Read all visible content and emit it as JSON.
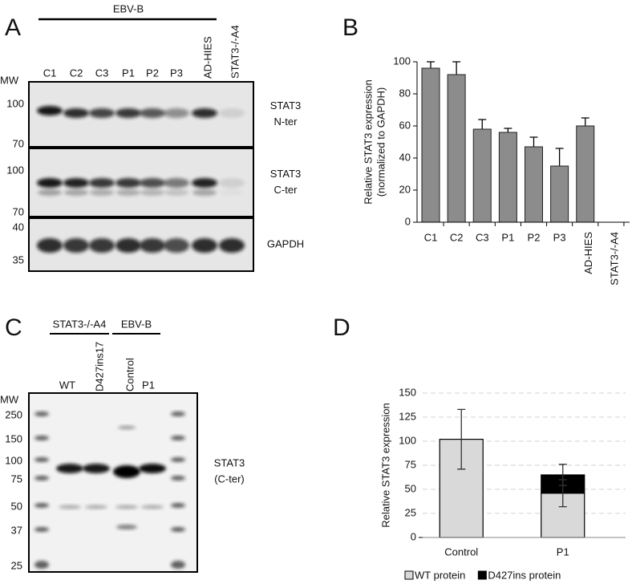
{
  "panel_a": {
    "letter": "A",
    "group": "EBV-B",
    "mw_label": "MW",
    "lanes": [
      "C1",
      "C2",
      "C3",
      "P1",
      "P2",
      "P3",
      "AD-HIES",
      "STAT3-/-A4"
    ],
    "blots": [
      {
        "label": [
          "STAT3",
          "N-ter"
        ],
        "markers": [
          100,
          70
        ]
      },
      {
        "label": [
          "STAT3",
          "C-ter"
        ],
        "markers": [
          100,
          70
        ]
      },
      {
        "label": [
          "GAPDH"
        ],
        "markers": [
          40,
          35
        ]
      }
    ]
  },
  "panel_c": {
    "letter": "C",
    "mw_label": "MW",
    "groups": [
      "STAT3-/-A4",
      "EBV-B"
    ],
    "lanes": [
      "WT",
      "D427ins17",
      "Control",
      "P1"
    ],
    "markers": [
      250,
      150,
      100,
      75,
      50,
      37,
      25
    ],
    "label": [
      "STAT3",
      "(C-ter)"
    ]
  },
  "chart_data": [
    {
      "type": "bar",
      "panel_letter": "B",
      "y_label": [
        "Relative STAT3 expression",
        "(normalized to GAPDH)"
      ],
      "categories": [
        "C1",
        "C2",
        "C3",
        "P1",
        "P2",
        "P3",
        "AD-HIES",
        "STAT3-/-A4"
      ],
      "values": [
        96,
        92,
        58,
        56,
        47,
        35,
        60,
        null
      ],
      "errors": [
        4,
        8,
        6,
        2.5,
        6,
        11,
        5,
        null
      ],
      "color": "#8c8c8c",
      "ylim": [
        0,
        100
      ],
      "yticks": [
        0,
        20,
        40,
        60,
        80,
        100
      ],
      "grid": false
    },
    {
      "type": "stacked_bar",
      "panel_letter": "D",
      "y_label": [
        "Relative STAT3 expression"
      ],
      "categories": [
        "Control",
        "P1"
      ],
      "series": [
        {
          "name": "WT protein",
          "color": "#d9d9d9",
          "values": [
            102,
            46
          ],
          "errors": [
            31,
            14
          ]
        },
        {
          "name": "D427ins protein",
          "color": "#000000",
          "values": [
            null,
            19
          ],
          "errors": [
            null,
            11
          ]
        }
      ],
      "ylim": [
        0,
        150
      ],
      "yticks": [
        0,
        25,
        50,
        75,
        100,
        125,
        150
      ],
      "grid": true,
      "legend": "bottom"
    }
  ]
}
